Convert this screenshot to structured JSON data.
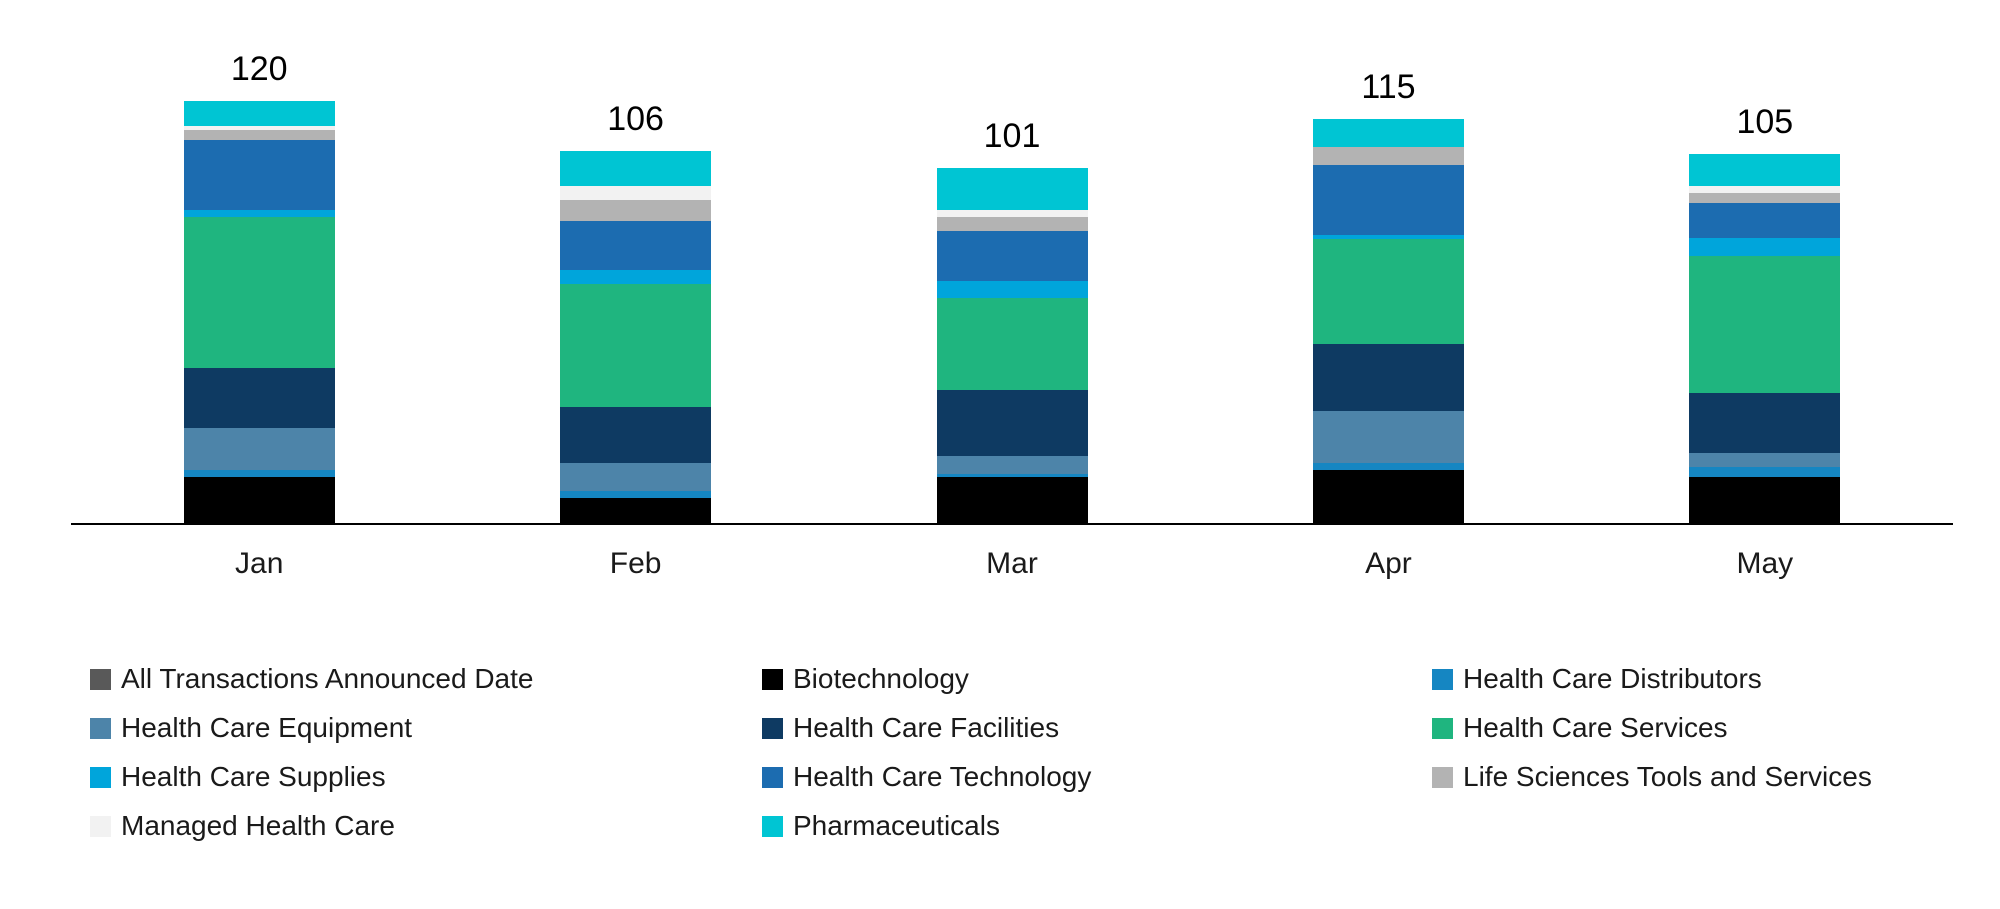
{
  "chart_data": {
    "type": "bar",
    "stacked": true,
    "title": "",
    "xlabel": "",
    "ylabel": "",
    "categories": [
      "Jan",
      "Feb",
      "Mar",
      "Apr",
      "May"
    ],
    "totals": [
      120,
      106,
      101,
      115,
      105
    ],
    "series": [
      {
        "name": "All Transactions Announced Date",
        "color": "#595959",
        "values": [
          0,
          0,
          0,
          0,
          0
        ]
      },
      {
        "name": "Biotechnology",
        "color": "#000000",
        "values": [
          13,
          7,
          13,
          15,
          13
        ]
      },
      {
        "name": "Health Care Distributors",
        "color": "#1586C2",
        "values": [
          2,
          2,
          1,
          2,
          3
        ]
      },
      {
        "name": "Health Care Equipment",
        "color": "#4D84A9",
        "values": [
          12,
          8,
          5,
          15,
          4
        ]
      },
      {
        "name": "Health Care Facilities",
        "color": "#0E3A62",
        "values": [
          17,
          16,
          19,
          19,
          17
        ]
      },
      {
        "name": "Health Care Services",
        "color": "#1FB57F",
        "values": [
          43,
          35,
          26,
          30,
          39
        ]
      },
      {
        "name": "Health Care Supplies",
        "color": "#00A5DB",
        "values": [
          2,
          4,
          5,
          1,
          5
        ]
      },
      {
        "name": "Health Care Technology",
        "color": "#1C6CB0",
        "values": [
          20,
          14,
          14,
          20,
          10
        ]
      },
      {
        "name": "Life Sciences Tools and Services",
        "color": "#B3B3B3",
        "values": [
          3,
          6,
          4,
          5,
          3
        ]
      },
      {
        "name": "Managed Health Care",
        "color": "#F2F2F2",
        "values": [
          1,
          4,
          2,
          0,
          2
        ]
      },
      {
        "name": "Pharmaceuticals",
        "color": "#00C5D3",
        "values": [
          7,
          10,
          12,
          8,
          9
        ]
      }
    ],
    "ylim": [
      0,
      130
    ],
    "grid": false,
    "legend_position": "bottom",
    "axis_line_color": "#000000"
  }
}
